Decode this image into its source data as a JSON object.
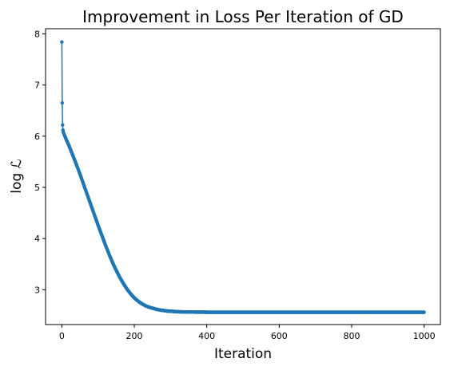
{
  "chart_data": {
    "type": "line",
    "title": "Improvement in Loss Per Iteration of GD",
    "xlabel": "Iteration",
    "ylabel": "log ℒ",
    "xlim": [
      -45,
      1045
    ],
    "ylim": [
      2.32,
      8.1
    ],
    "xticks": [
      0,
      200,
      400,
      600,
      800,
      1000
    ],
    "yticks": [
      3,
      4,
      5,
      6,
      7,
      8
    ],
    "grid": false,
    "legend": "none",
    "series": [
      {
        "color": "#1f77b4",
        "marker": "circle",
        "x": [
          0,
          1,
          2,
          3,
          4,
          5,
          10,
          20,
          30,
          40,
          50,
          60,
          70,
          80,
          90,
          100,
          110,
          120,
          130,
          140,
          150,
          160,
          170,
          180,
          190,
          200,
          210,
          220,
          230,
          240,
          250,
          260,
          270,
          280,
          290,
          300,
          310,
          320,
          330,
          340,
          350,
          360,
          370,
          380,
          390,
          400,
          420,
          450,
          500,
          550,
          600,
          650,
          700,
          750,
          800,
          850,
          900,
          950,
          1000
        ],
        "values": [
          7.84,
          6.65,
          6.22,
          6.12,
          6.08,
          6.06,
          5.97,
          5.81,
          5.63,
          5.45,
          5.26,
          5.06,
          4.86,
          4.66,
          4.46,
          4.26,
          4.07,
          3.88,
          3.7,
          3.53,
          3.38,
          3.24,
          3.12,
          3.01,
          2.92,
          2.84,
          2.78,
          2.73,
          2.69,
          2.66,
          2.64,
          2.62,
          2.605,
          2.595,
          2.585,
          2.58,
          2.575,
          2.57,
          2.568,
          2.566,
          2.565,
          2.564,
          2.563,
          2.562,
          2.562,
          2.561,
          2.561,
          2.56,
          2.56,
          2.56,
          2.56,
          2.56,
          2.56,
          2.56,
          2.56,
          2.56,
          2.56,
          2.56,
          2.56
        ]
      }
    ]
  }
}
